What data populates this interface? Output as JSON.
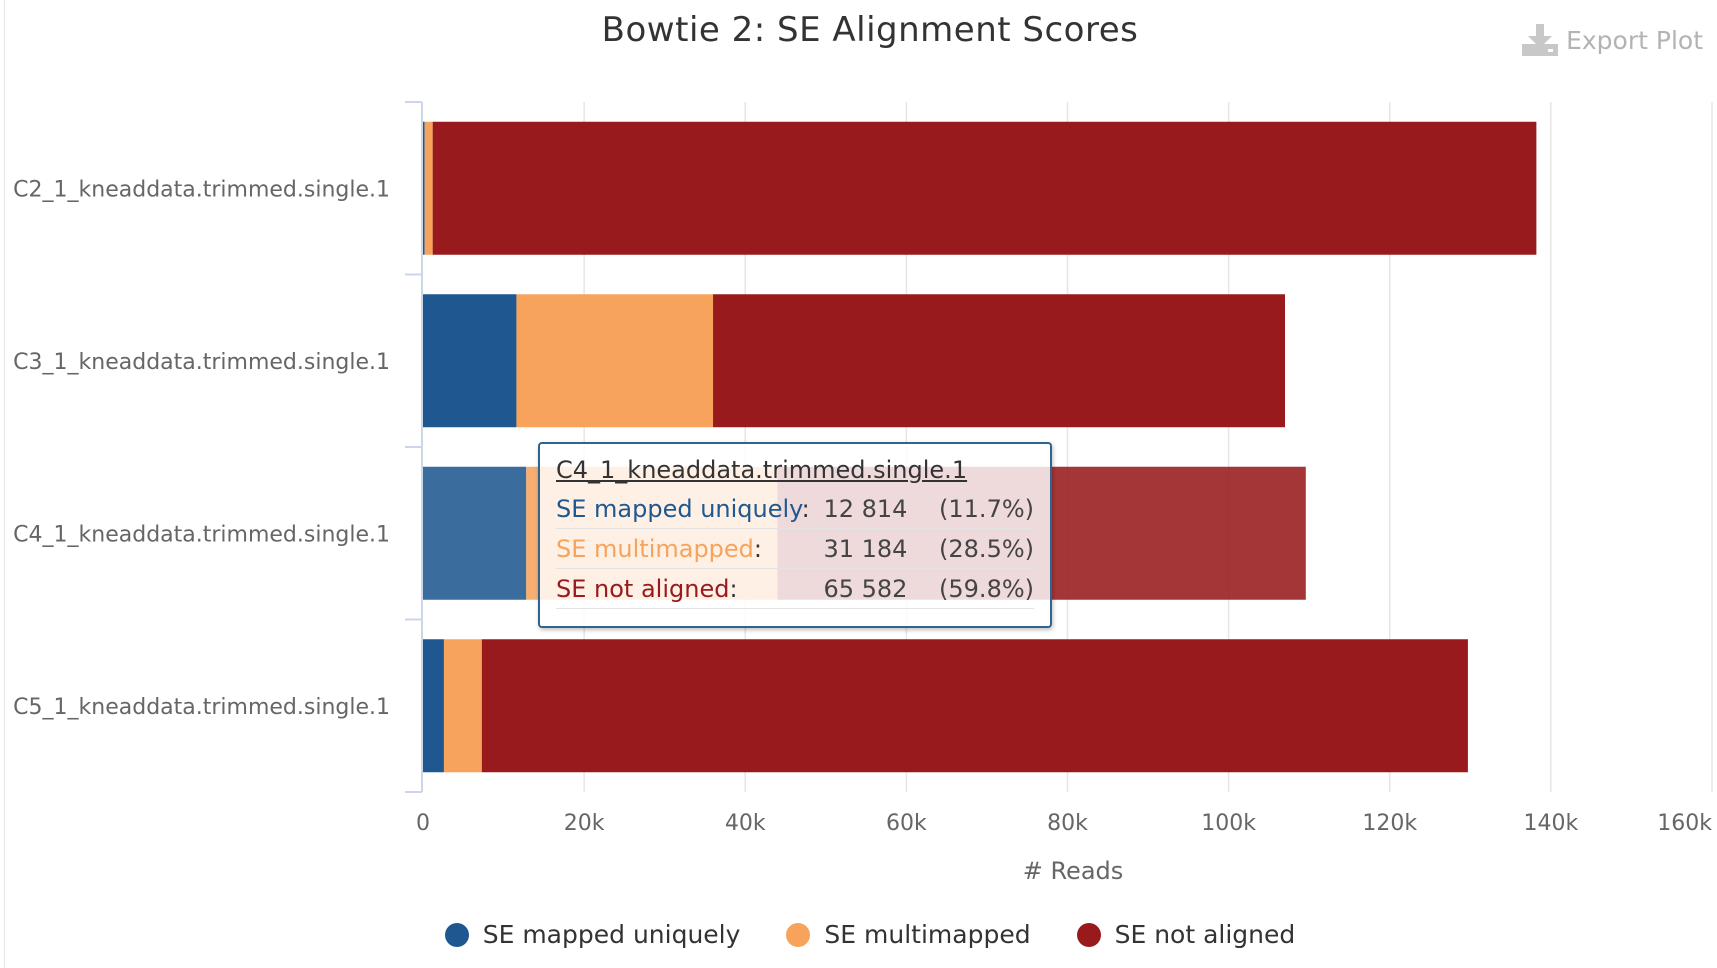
{
  "title": "Bowtie 2: SE Alignment Scores",
  "export_label": "Export Plot",
  "chart_data": {
    "type": "bar",
    "orientation": "horizontal",
    "stacked": true,
    "title": "Bowtie 2: SE Alignment Scores",
    "xlabel": "# Reads",
    "ylabel": "",
    "xlim": [
      0,
      160000
    ],
    "x_ticks": [
      0,
      20000,
      40000,
      60000,
      80000,
      100000,
      120000,
      140000,
      160000
    ],
    "x_tick_labels": [
      "0",
      "20k",
      "40k",
      "60k",
      "80k",
      "100k",
      "120k",
      "140k",
      "160k"
    ],
    "grid": true,
    "legend_position": "bottom",
    "categories": [
      "C2_1_kneaddata.trimmed.single.1",
      "C3_1_kneaddata.trimmed.single.1",
      "C4_1_kneaddata.trimmed.single.1",
      "C5_1_kneaddata.trimmed.single.1"
    ],
    "series": [
      {
        "name": "SE mapped uniquely",
        "color": "#1f5891",
        "values": [
          200,
          11600,
          12814,
          2600
        ]
      },
      {
        "name": "SE multimapped",
        "color": "#f7a35c",
        "values": [
          1000,
          24400,
          31184,
          4700
        ]
      },
      {
        "name": "SE not aligned",
        "color": "#991a1c",
        "values": [
          137000,
          71000,
          65582,
          122400
        ]
      }
    ]
  },
  "tooltip": {
    "title": "C4_1_kneaddata.trimmed.single.1",
    "rows": [
      {
        "label": "SE mapped uniquely",
        "colon": ":",
        "value": "12 814",
        "percent": "(11.7%)",
        "color": "#1f5891"
      },
      {
        "label": "SE multimapped",
        "colon": ":",
        "value": "31 184",
        "percent": "(28.5%)",
        "color": "#f7a35c"
      },
      {
        "label": "SE not aligned",
        "colon": ":",
        "value": "65 582",
        "percent": "(59.8%)",
        "color": "#991a1c"
      }
    ]
  }
}
